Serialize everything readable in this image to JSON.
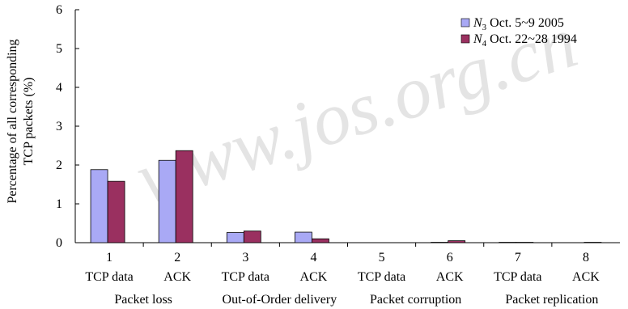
{
  "chart_data": {
    "type": "bar",
    "ylabel_lines": [
      "Percentage of all corresponding",
      "TCP packets (%)"
    ],
    "ylim": [
      0,
      6
    ],
    "yticks": [
      "0",
      "1",
      "2",
      "3",
      "4",
      "5",
      "6"
    ],
    "categories": [
      "1",
      "2",
      "3",
      "4",
      "5",
      "6",
      "7",
      "8"
    ],
    "category_sublabels": [
      "TCP data",
      "ACK",
      "TCP data",
      "ACK",
      "TCP data",
      "ACK",
      "TCP data",
      "ACK"
    ],
    "groups": [
      "Packet loss",
      "Out-of-Order delivery",
      "Packet corruption",
      "Packet replication"
    ],
    "grid": false,
    "legend_position": "top-right",
    "series": [
      {
        "name_var": "N",
        "name_sub": "3",
        "name_rest": " Oct. 5~9 2005",
        "color": "#a9a9f5",
        "values": [
          1.88,
          2.12,
          0.26,
          0.27,
          0.0,
          0.01,
          0.01,
          0.0
        ]
      },
      {
        "name_var": "N",
        "name_sub": "4",
        "name_rest": " Oct. 22~28 1994",
        "color": "#9a3060",
        "values": [
          1.58,
          2.37,
          0.3,
          0.1,
          0.0,
          0.05,
          0.01,
          0.01
        ]
      }
    ]
  },
  "watermark": "www.jos.org.cn"
}
